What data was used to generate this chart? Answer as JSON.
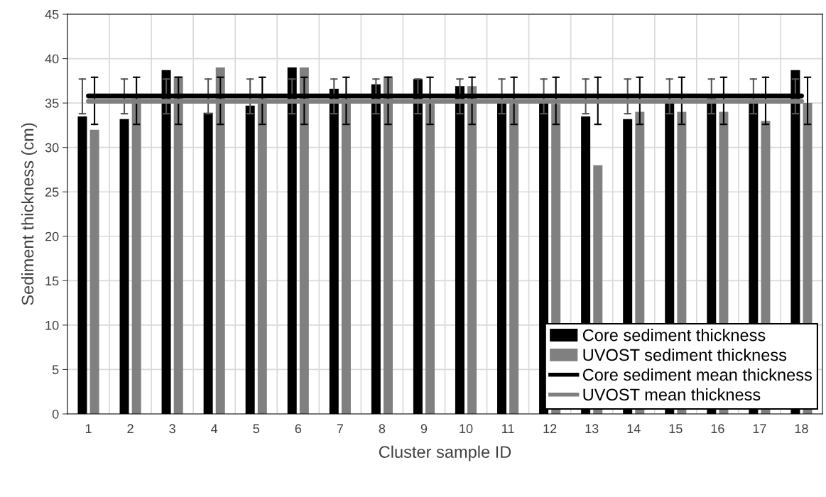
{
  "chart_data": {
    "type": "bar",
    "xlabel": "Cluster sample ID",
    "ylabel": "Sediment thickness (cm)",
    "categories": [
      "1",
      "2",
      "3",
      "4",
      "5",
      "6",
      "7",
      "8",
      "9",
      "10",
      "11",
      "12",
      "13",
      "14",
      "15",
      "16",
      "17",
      "18"
    ],
    "series": [
      {
        "name": "Core sediment thickness",
        "color": "#000000",
        "values": [
          33.5,
          33.2,
          38.7,
          33.9,
          34.7,
          39.0,
          36.6,
          37.1,
          37.7,
          36.9,
          35.0,
          35.0,
          33.5,
          33.2,
          35.0,
          35.5,
          35.0,
          38.7
        ],
        "errors": [
          [
            33.8,
            37.7
          ],
          [
            33.8,
            37.7
          ],
          [
            33.8,
            37.7
          ],
          [
            33.8,
            37.7
          ],
          [
            33.8,
            37.7
          ],
          [
            33.8,
            37.7
          ],
          [
            33.8,
            37.7
          ],
          [
            33.8,
            37.7
          ],
          [
            33.8,
            37.7
          ],
          [
            33.8,
            37.7
          ],
          [
            33.8,
            37.7
          ],
          [
            33.8,
            37.7
          ],
          [
            33.8,
            37.7
          ],
          [
            33.8,
            37.7
          ],
          [
            33.8,
            37.7
          ],
          [
            33.8,
            37.7
          ],
          [
            33.8,
            37.7
          ],
          [
            33.8,
            37.7
          ]
        ]
      },
      {
        "name": "UVOST sediment thickness",
        "color": "#808080",
        "values": [
          32.0,
          35.5,
          38.0,
          39.0,
          35.5,
          39.0,
          35.5,
          38.0,
          34.9,
          36.9,
          34.9,
          34.9,
          28.0,
          34.0,
          34.0,
          34.0,
          33.0,
          35.0
        ],
        "errors": [
          [
            32.6,
            37.9
          ],
          [
            32.6,
            37.9
          ],
          [
            32.6,
            37.9
          ],
          [
            32.6,
            37.9
          ],
          [
            32.6,
            37.9
          ],
          [
            32.6,
            37.9
          ],
          [
            32.6,
            37.9
          ],
          [
            32.6,
            37.9
          ],
          [
            32.6,
            37.9
          ],
          [
            32.6,
            37.9
          ],
          [
            32.6,
            37.9
          ],
          [
            32.6,
            37.9
          ],
          [
            32.6,
            37.9
          ],
          [
            32.6,
            37.9
          ],
          [
            32.6,
            37.9
          ],
          [
            32.6,
            37.9
          ],
          [
            32.6,
            37.9
          ],
          [
            32.6,
            37.9
          ]
        ]
      },
      {
        "name": "Core sediment mean thickness",
        "type": "line",
        "color": "#000000",
        "values": [
          35.8,
          35.8,
          35.8,
          35.8,
          35.8,
          35.8,
          35.8,
          35.8,
          35.8,
          35.8,
          35.8,
          35.8,
          35.8,
          35.8,
          35.8,
          35.8,
          35.8,
          35.8
        ]
      },
      {
        "name": "UVOST mean thickness",
        "type": "line",
        "color": "#808080",
        "values": [
          35.2,
          35.2,
          35.2,
          35.2,
          35.2,
          35.2,
          35.2,
          35.2,
          35.2,
          35.2,
          35.2,
          35.2,
          35.2,
          35.2,
          35.2,
          35.2,
          35.2,
          35.2
        ]
      }
    ],
    "ylim": [
      0,
      45
    ],
    "yticks": [
      0,
      5,
      10,
      15,
      20,
      25,
      30,
      35,
      40,
      45
    ],
    "grid": true,
    "legend": "bottom right"
  }
}
